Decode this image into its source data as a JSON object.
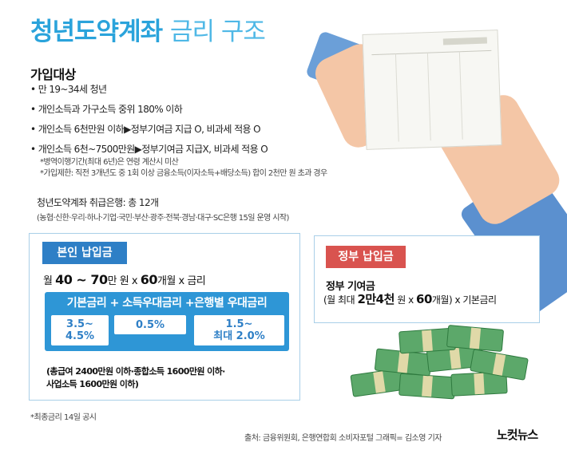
{
  "title": {
    "strong": "청년도약계좌",
    "light": "금리 구조"
  },
  "eligibility": {
    "heading": "가입대상",
    "bullets": [
      "• 만 19~34세 청년",
      "• 개인소득과 가구소득 중위 180% 이하",
      "• 개인소득 6천만원 이하▶정부기여금 지급 O, 비과세 적용 O",
      "• 개인소득 6천~7500만원▶정부기여금 지급X, 비과세 적용 O"
    ],
    "notes": [
      "*병역이행기간(최대 6년)은 연령 계산시 미산",
      "*가입제한: 직전 3개년도 중 1회 이상 금융소득(이자소득+배당소득) 합이 2천만 원 초과 경우"
    ]
  },
  "banks": {
    "title": "청년도약계좌 취급은행: 총 12개",
    "list": "(농협·신한·우리·하나·기업·국민·부산·광주·전북·경남·대구·SC은행 15일 운영 시작)"
  },
  "self": {
    "label": "본인 납입금",
    "formula_pre": "월 ",
    "formula_amount": "40 ~ 70",
    "formula_mid": "만 원 x ",
    "formula_months": "60",
    "formula_post": "개월 x 금리",
    "rates_title": "기본금리 + 소득우대금리 +은행별 우대금리",
    "rate_base_1": "3.5~",
    "rate_base_2": "4.5%",
    "rate_income": "0.5%",
    "rate_bank_1": "1.5~",
    "rate_bank_2": "최대 2.0%",
    "cond_1": "(총급여 2400만원 이하·종합소득 1600만원 이하·",
    "cond_2": "사업소득 1600만원 이하)"
  },
  "government": {
    "label": "정부 납입금",
    "title": "정부 기여금",
    "formula_pre": "(월 최대 ",
    "formula_amount": "2만4천",
    "formula_mid": " 원 x ",
    "formula_months": "60",
    "formula_post": "개월) x 기본금리"
  },
  "footnote": "*최종금리 14일 공시",
  "source": "출처: 금융위원회, 은행연합회 소비자포털   그래픽= 김소영 기자",
  "logo": "노컷뉴스",
  "colors": {
    "title_blue": "#2aa3db",
    "self_label": "#2e7fc6",
    "gov_label": "#d9534f",
    "rate_panel": "#2e96d6"
  }
}
